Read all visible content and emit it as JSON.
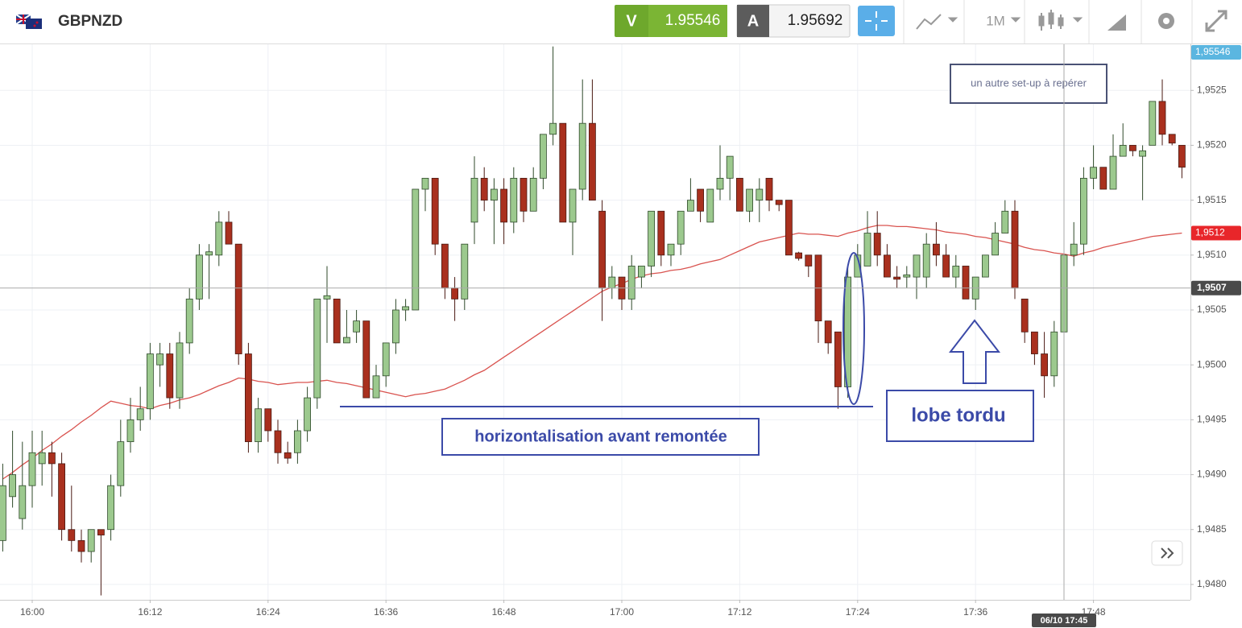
{
  "header": {
    "symbol": "GBPNZD",
    "bid_label": "V",
    "bid": "1.95546",
    "ask_label": "A",
    "ask": "1.95692",
    "timeframe": "1M"
  },
  "chart_data": {
    "type": "candlestick",
    "categories": [
      null,
      null,
      null,
      "16:00",
      null,
      null,
      null,
      null,
      null,
      null,
      null,
      null,
      null,
      null,
      null,
      "16:12",
      null,
      null,
      null,
      null,
      null,
      null,
      null,
      null,
      null,
      null,
      null,
      "16:24",
      null,
      null,
      null,
      null,
      null,
      null,
      null,
      null,
      null,
      null,
      null,
      "16:36",
      null,
      null,
      null,
      null,
      null,
      null,
      null,
      null,
      null,
      null,
      null,
      "16:48",
      null,
      null,
      null,
      null,
      null,
      null,
      null,
      null,
      null,
      null,
      null,
      "17:00",
      null,
      null,
      null,
      null,
      null,
      null,
      null,
      null,
      null,
      null,
      null,
      "17:12",
      null,
      null,
      null,
      null,
      null,
      null,
      null,
      null,
      null,
      null,
      null,
      "17:24",
      null,
      null,
      null,
      null,
      null,
      null,
      null,
      null,
      null,
      null,
      null,
      "17:36",
      null,
      null,
      null,
      null,
      null,
      null,
      null,
      null,
      null,
      null,
      null,
      "17:48",
      null,
      null,
      null,
      null,
      null,
      null,
      null,
      null,
      null
    ],
    "open": [
      1.9484,
      1.9488,
      1.9486,
      1.9489,
      1.9491,
      1.9492,
      1.9491,
      1.9485,
      1.9484,
      1.9483,
      1.9485,
      1.9485,
      1.9489,
      1.9493,
      1.9495,
      1.9496,
      1.95,
      1.9501,
      1.9497,
      1.9502,
      1.9506,
      1.951,
      1.951,
      1.9513,
      1.9511,
      1.9501,
      1.9493,
      1.9496,
      1.9494,
      1.9492,
      1.9492,
      1.9494,
      1.9497,
      1.9506,
      1.9506,
      1.9502,
      1.9503,
      1.9504,
      1.9497,
      1.9499,
      1.9502,
      1.9505,
      1.9505,
      1.9516,
      1.9517,
      1.9511,
      1.9507,
      1.9506,
      1.9513,
      1.9517,
      1.9515,
      1.9516,
      1.9513,
      1.9517,
      1.9514,
      1.9517,
      1.9521,
      1.9522,
      1.9513,
      1.9516,
      1.9522,
      1.9514,
      1.9507,
      1.9508,
      1.9506,
      1.9508,
      1.9509,
      1.9514,
      1.951,
      1.9511,
      1.9514,
      1.9516,
      1.9513,
      1.9516,
      1.9517,
      1.9517,
      1.9514,
      1.9515,
      1.9517,
      1.9515,
      1.9515,
      1.95102,
      1.951,
      1.951,
      1.9504,
      1.9503,
      1.9498,
      1.9508,
      1.9509,
      1.9512,
      1.951,
      1.9508,
      1.9508,
      1.9508,
      1.9508,
      1.9511,
      1.951,
      1.9508,
      1.9509,
      1.9506,
      1.9508,
      1.951,
      1.9512,
      1.9514,
      1.9506,
      1.9503,
      1.9501,
      1.9499,
      1.9503,
      1.951,
      1.9511,
      1.9517,
      1.9518,
      1.9516,
      1.9519,
      1.952,
      1.9519,
      1.952,
      1.9524,
      1.9521,
      1.952
    ],
    "high": [
      1.9491,
      1.9494,
      1.9493,
      1.9494,
      1.9494,
      1.9493,
      1.9492,
      1.9489,
      1.9485,
      1.9485,
      1.9485,
      1.949,
      1.9495,
      1.9497,
      1.9498,
      1.9502,
      1.9502,
      1.9502,
      1.9503,
      1.9507,
      1.9511,
      1.9511,
      1.9514,
      1.9514,
      1.9511,
      1.9502,
      1.9497,
      1.9496,
      1.9495,
      1.9493,
      1.9495,
      1.9498,
      1.9506,
      1.9509,
      1.9506,
      1.9505,
      1.9505,
      1.9504,
      1.95,
      1.9502,
      1.9506,
      1.9506,
      1.9516,
      1.9517,
      1.9517,
      1.9511,
      1.9508,
      1.9511,
      1.9519,
      1.9518,
      1.9517,
      1.9517,
      1.9518,
      1.9517,
      1.9518,
      1.9521,
      1.9529,
      1.9522,
      1.9516,
      1.9526,
      1.9526,
      1.9515,
      1.9509,
      1.9508,
      1.951,
      1.9509,
      1.9514,
      1.9514,
      1.9511,
      1.9514,
      1.9517,
      1.9516,
      1.9516,
      1.952,
      1.9519,
      1.9517,
      1.9516,
      1.9517,
      1.9517,
      1.9515,
      1.9515,
      1.95103,
      1.951,
      1.951,
      1.9504,
      1.9503,
      1.9509,
      1.9511,
      1.9514,
      1.9514,
      1.9511,
      1.9509,
      1.9509,
      1.951,
      1.9512,
      1.9513,
      1.9511,
      1.951,
      1.9509,
      1.9508,
      1.951,
      1.9513,
      1.9515,
      1.9515,
      1.9506,
      1.9503,
      1.9503,
      1.9504,
      1.951,
      1.9513,
      1.9518,
      1.952,
      1.9518,
      1.9521,
      1.9522,
      1.952,
      1.952,
      1.9524,
      1.9526,
      1.9521,
      1.952
    ],
    "low": [
      1.9483,
      1.9487,
      1.9485,
      1.9487,
      1.9489,
      1.9488,
      1.9484,
      1.9483,
      1.9482,
      1.9482,
      1.9479,
      1.9484,
      1.9488,
      1.9492,
      1.9494,
      1.9495,
      1.9498,
      1.9496,
      1.9496,
      1.9501,
      1.9505,
      1.9506,
      1.9509,
      1.9511,
      1.95,
      1.9492,
      1.9492,
      1.9493,
      1.9491,
      1.9491,
      1.9491,
      1.9493,
      1.9496,
      1.9502,
      1.9502,
      1.9502,
      1.9502,
      1.9497,
      1.9497,
      1.9498,
      1.9501,
      1.9504,
      1.9505,
      1.9514,
      1.951,
      1.9506,
      1.9504,
      1.9505,
      1.9511,
      1.9514,
      1.9511,
      1.9511,
      1.9512,
      1.9513,
      1.9514,
      1.9516,
      1.952,
      1.9513,
      1.951,
      1.9515,
      1.9515,
      1.9504,
      1.9506,
      1.9505,
      1.9505,
      1.9507,
      1.9508,
      1.9509,
      1.9509,
      1.951,
      1.9514,
      1.9513,
      1.9513,
      1.9515,
      1.9515,
      1.9514,
      1.9513,
      1.9513,
      1.9514,
      1.9514,
      1.951,
      1.95095,
      1.9508,
      1.9502,
      1.9501,
      1.9496,
      1.9497,
      1.9508,
      1.9509,
      1.9509,
      1.9508,
      1.9507,
      1.9507,
      1.9506,
      1.9507,
      1.9509,
      1.9508,
      1.9507,
      1.9506,
      1.9505,
      1.9508,
      1.951,
      1.9512,
      1.9506,
      1.9502,
      1.95,
      1.9497,
      1.9498,
      1.9503,
      1.9509,
      1.951,
      1.9516,
      1.9516,
      1.9516,
      1.9519,
      1.9519,
      1.9515,
      1.952,
      1.952,
      1.952,
      1.9517
    ],
    "close": [
      1.9489,
      1.949,
      1.9489,
      1.9492,
      1.9492,
      1.9491,
      1.9485,
      1.9484,
      1.9483,
      1.9485,
      1.94845,
      1.9489,
      1.9493,
      1.9495,
      1.9496,
      1.9501,
      1.9501,
      1.9497,
      1.9502,
      1.9506,
      1.951,
      1.95103,
      1.9513,
      1.9511,
      1.9501,
      1.9493,
      1.9496,
      1.9494,
      1.9492,
      1.94915,
      1.9494,
      1.9497,
      1.9506,
      1.95063,
      1.9502,
      1.95025,
      1.9504,
      1.9497,
      1.9499,
      1.9502,
      1.9505,
      1.95053,
      1.9516,
      1.9517,
      1.9511,
      1.9507,
      1.9506,
      1.9511,
      1.9517,
      1.9515,
      1.9516,
      1.9513,
      1.9517,
      1.9514,
      1.9517,
      1.9521,
      1.9522,
      1.9513,
      1.9516,
      1.9522,
      1.9515,
      1.9507,
      1.9508,
      1.9506,
      1.9509,
      1.9509,
      1.9514,
      1.951,
      1.9511,
      1.9514,
      1.9515,
      1.9514,
      1.9516,
      1.9517,
      1.9519,
      1.9514,
      1.9516,
      1.9516,
      1.9515,
      1.95146,
      1.951,
      1.95097,
      1.9509,
      1.9504,
      1.9502,
      1.9498,
      1.9508,
      1.951,
      1.9512,
      1.951,
      1.9508,
      1.95078,
      1.95082,
      1.951,
      1.9511,
      1.951,
      1.9508,
      1.9509,
      1.9506,
      1.9508,
      1.951,
      1.9512,
      1.9514,
      1.9507,
      1.9503,
      1.9501,
      1.9499,
      1.9503,
      1.951,
      1.9511,
      1.9517,
      1.9518,
      1.9516,
      1.9519,
      1.952,
      1.95195,
      1.95195,
      1.9524,
      1.9521,
      1.95202,
      1.9518
    ],
    "up_color": "#9cc98e",
    "down_color": "#a9301e",
    "moving_average": {
      "color": "#d9534f",
      "values": [
        1.94896,
        1.94902,
        1.94909,
        1.94915,
        1.94922,
        1.94928,
        1.94935,
        1.94941,
        1.94948,
        1.94954,
        1.94961,
        1.94967,
        1.94965,
        1.94963,
        1.94962,
        1.9496,
        1.94963,
        1.94965,
        1.94968,
        1.9497,
        1.94973,
        1.94977,
        1.94981,
        1.94984,
        1.94988,
        1.94987,
        1.94985,
        1.94984,
        1.94982,
        1.94983,
        1.94984,
        1.94984,
        1.94985,
        1.94986,
        1.94984,
        1.94983,
        1.94981,
        1.94979,
        1.94977,
        1.94975,
        1.94973,
        1.94971,
        1.94973,
        1.94974,
        1.94976,
        1.94978,
        1.94982,
        1.94986,
        1.94991,
        1.94995,
        1.95001,
        1.95007,
        1.95013,
        1.95019,
        1.95025,
        1.95031,
        1.95037,
        1.95043,
        1.95049,
        1.95055,
        1.95061,
        1.95067,
        1.95071,
        1.95074,
        1.95078,
        1.95081,
        1.95083,
        1.95084,
        1.95086,
        1.95087,
        1.95089,
        1.95092,
        1.95094,
        1.95096,
        1.951,
        1.95104,
        1.95108,
        1.95112,
        1.95114,
        1.95116,
        1.95118,
        1.9512,
        1.95119,
        1.95119,
        1.95118,
        1.95117,
        1.9512,
        1.95122,
        1.95125,
        1.95127,
        1.95127,
        1.95126,
        1.95126,
        1.95125,
        1.95124,
        1.95123,
        1.95121,
        1.9512,
        1.95119,
        1.95117,
        1.95116,
        1.95114,
        1.95112,
        1.9511,
        1.95107,
        1.95105,
        1.95104,
        1.95102,
        1.95101,
        1.95099,
        1.95102,
        1.95104,
        1.95107,
        1.95109,
        1.95111,
        1.95113,
        1.95115,
        1.95117,
        1.95118,
        1.95119,
        1.9512
      ]
    },
    "ylim": [
      1.94786,
      1.95292
    ],
    "yticks": [
      {
        "value": 1.948,
        "label": "1,9480"
      },
      {
        "value": 1.9485,
        "label": "1,9485"
      },
      {
        "value": 1.949,
        "label": "1,9490"
      },
      {
        "value": 1.9495,
        "label": "1,9495"
      },
      {
        "value": 1.95,
        "label": "1,9500"
      },
      {
        "value": 1.9505,
        "label": "1,9505"
      },
      {
        "value": 1.951,
        "label": "1,9510"
      },
      {
        "value": 1.9515,
        "label": "1,9515"
      },
      {
        "value": 1.952,
        "label": "1,9520"
      },
      {
        "value": 1.9525,
        "label": "1,9525"
      }
    ],
    "grid": true,
    "crosshair": {
      "x_label": "06/10 17:45",
      "y": {
        "value": 1.9507,
        "label": "1,9507"
      }
    },
    "price_tags": [
      {
        "value": 1.95546,
        "label": "1,95546",
        "color": "#5bb6e0"
      },
      {
        "value": 1.9512,
        "label": "1,9512",
        "color": "#e8262a"
      }
    ],
    "annotations": [
      "horizontalisation avant remontée",
      "lobe tordu",
      "un autre set-up à repérer"
    ]
  }
}
